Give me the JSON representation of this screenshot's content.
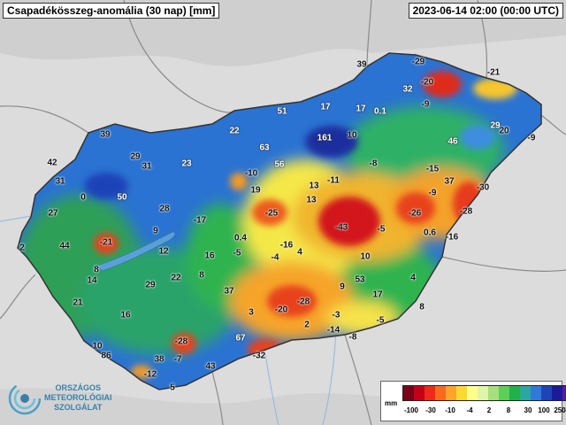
{
  "title": "Csapadékösszeg-anomália (30 nap) [mm]",
  "timestamp": "2023-06-14 02:00 (00:00 UTC)",
  "logo": {
    "lines": [
      "ORSZÁGOS",
      "METEOROLÓGIAI",
      "SZOLGÁLAT"
    ]
  },
  "legend": {
    "unit": "mm",
    "colors": [
      "#7a0018",
      "#c40018",
      "#ee2a1a",
      "#f9691e",
      "#fda42a",
      "#fed832",
      "#ffff8a",
      "#dff5a8",
      "#a5e07c",
      "#5ccf5a",
      "#22b04a",
      "#2ba6a0",
      "#3079d8",
      "#1f43b8",
      "#1b1b98",
      "#5a1aa0",
      "#8b2ab5"
    ],
    "ticks": [
      "-100",
      "-30",
      "-10",
      "-4",
      "2",
      "8",
      "30",
      "100",
      "250"
    ]
  },
  "values": [
    {
      "v": "39",
      "light": false
    },
    {
      "v": "-29",
      "light": false
    },
    {
      "v": "-21",
      "light": false
    },
    {
      "v": "32",
      "light": true
    },
    {
      "v": "-20",
      "light": false
    },
    {
      "v": "-9",
      "light": false
    },
    {
      "v": "51",
      "light": true
    },
    {
      "v": "17",
      "light": true
    },
    {
      "v": "17",
      "light": true
    },
    {
      "v": "0.1",
      "light": true
    },
    {
      "v": "29",
      "light": true
    },
    {
      "v": "20",
      "light": false
    },
    {
      "v": "-9",
      "light": false
    },
    {
      "v": "39",
      "light": false
    },
    {
      "v": "22",
      "light": true
    },
    {
      "v": "161",
      "light": true
    },
    {
      "v": "10",
      "light": false
    },
    {
      "v": "46",
      "light": true
    },
    {
      "v": "63",
      "light": true
    },
    {
      "v": "42",
      "light": false
    },
    {
      "v": "29",
      "light": false
    },
    {
      "v": "31",
      "light": false
    },
    {
      "v": "23",
      "light": true
    },
    {
      "v": "56",
      "light": true
    },
    {
      "v": "-8",
      "light": false
    },
    {
      "v": "-15",
      "light": false
    },
    {
      "v": "31",
      "light": false
    },
    {
      "v": "0",
      "light": false
    },
    {
      "v": "50",
      "light": true
    },
    {
      "v": "-10",
      "light": false
    },
    {
      "v": "19",
      "light": false
    },
    {
      "v": "-11",
      "light": false
    },
    {
      "v": "13",
      "light": false
    },
    {
      "v": "37",
      "light": false
    },
    {
      "v": "-30",
      "light": false
    },
    {
      "v": "27",
      "light": false
    },
    {
      "v": "28",
      "light": false
    },
    {
      "v": "13",
      "light": false
    },
    {
      "v": "-9",
      "light": false
    },
    {
      "v": "-25",
      "light": false
    },
    {
      "v": "-17",
      "light": false
    },
    {
      "v": "-26",
      "light": false
    },
    {
      "v": "-28",
      "light": false
    },
    {
      "v": "2",
      "light": false
    },
    {
      "v": "44",
      "light": false
    },
    {
      "v": "-21",
      "light": false
    },
    {
      "v": "9",
      "light": false
    },
    {
      "v": "-43",
      "light": false
    },
    {
      "v": "-5",
      "light": false
    },
    {
      "v": "0.4",
      "light": false
    },
    {
      "v": "0.6",
      "light": false
    },
    {
      "v": "-16",
      "light": false
    },
    {
      "v": "12",
      "light": false
    },
    {
      "v": "-16",
      "light": false
    },
    {
      "v": "-5",
      "light": false
    },
    {
      "v": "4",
      "light": false
    },
    {
      "v": "-4",
      "light": false
    },
    {
      "v": "16",
      "light": false
    },
    {
      "v": "10",
      "light": false
    },
    {
      "v": "8",
      "light": false
    },
    {
      "v": "14",
      "light": false
    },
    {
      "v": "29",
      "light": false
    },
    {
      "v": "22",
      "light": false
    },
    {
      "v": "8",
      "light": false
    },
    {
      "v": "53",
      "light": false
    },
    {
      "v": "4",
      "light": false
    },
    {
      "v": "21",
      "light": false
    },
    {
      "v": "37",
      "light": false
    },
    {
      "v": "9",
      "light": false
    },
    {
      "v": "17",
      "light": false
    },
    {
      "v": "-28",
      "light": false
    },
    {
      "v": "16",
      "light": false
    },
    {
      "v": "3",
      "light": false
    },
    {
      "v": "-20",
      "light": false
    },
    {
      "v": "8",
      "light": false
    },
    {
      "v": "-3",
      "light": false
    },
    {
      "v": "-5",
      "light": false
    },
    {
      "v": "2",
      "light": false
    },
    {
      "v": "-14",
      "light": false
    },
    {
      "v": "10",
      "light": false
    },
    {
      "v": "-28",
      "light": false
    },
    {
      "v": "67",
      "light": true
    },
    {
      "v": "-8",
      "light": false
    },
    {
      "v": "86",
      "light": false
    },
    {
      "v": "38",
      "light": false
    },
    {
      "v": "-7",
      "light": false
    },
    {
      "v": "-32",
      "light": false
    },
    {
      "v": "43",
      "light": false
    },
    {
      "v": "-12",
      "light": false
    },
    {
      "v": "5",
      "light": false
    }
  ]
}
